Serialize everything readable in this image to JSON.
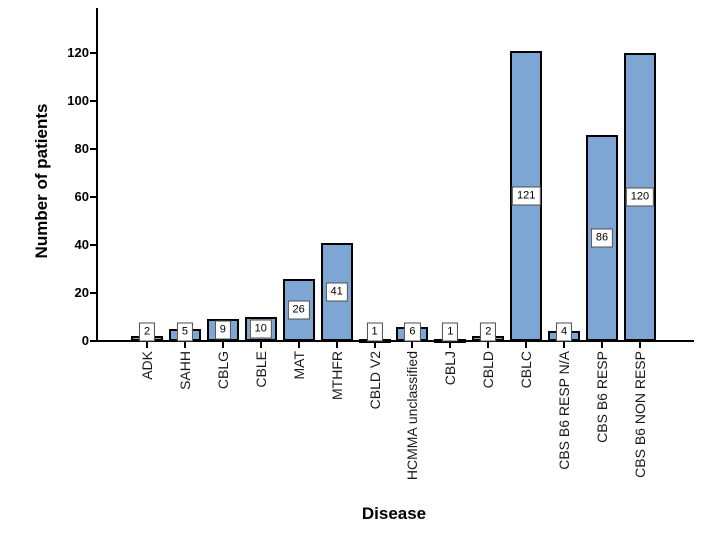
{
  "chart_data": {
    "type": "bar",
    "title": "",
    "xlabel": "Disease",
    "ylabel": "Number of patients",
    "categories": [
      "ADK",
      "SAHH",
      "CBLG",
      "CBLE",
      "MAT",
      "MTHFR",
      "CBLD V2",
      "HCMMA unclassified",
      "CBLJ",
      "CBLD",
      "CBLC",
      "CBS B6 RESP N/A",
      "CBS B6 RESP",
      "CBS B6 NON RESP"
    ],
    "values": [
      2,
      5,
      9,
      10,
      26,
      41,
      1,
      6,
      1,
      2,
      121,
      4,
      86,
      120
    ],
    "yticks": [
      0,
      20,
      40,
      60,
      80,
      100,
      120
    ],
    "ylim": [
      0,
      139
    ],
    "grid": false,
    "value_labels_shown": true,
    "legend_position": "none",
    "colors": {
      "bar_fill": "#7EA6D4",
      "bar_border": "#000000",
      "axis": "#000000",
      "value_label_bg": "#FFFFFF",
      "value_label_border": "#4D4D4D",
      "category_text": "#1A1A1A"
    }
  }
}
